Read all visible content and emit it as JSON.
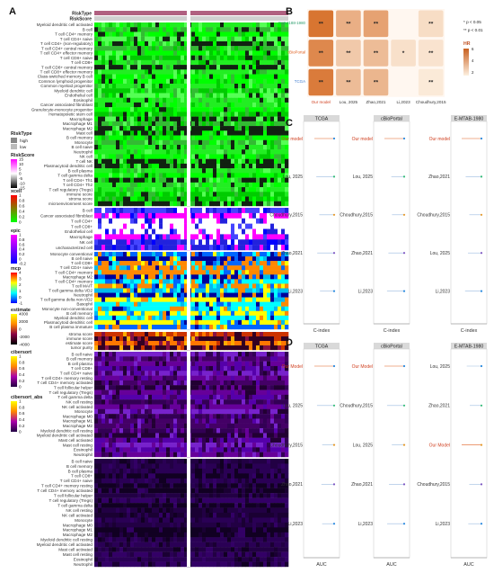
{
  "panel_letters": [
    "A",
    "B",
    "C",
    "D"
  ],
  "panel_a": {
    "top_bars": [
      "RiskType",
      "RiskScore"
    ],
    "legends": [
      {
        "title": "RiskType",
        "items": [
          {
            "label": "high",
            "color": "#888888"
          },
          {
            "label": "low",
            "color": "#bbbbbb"
          }
        ]
      },
      {
        "title": "RiskScore",
        "ticks": [
          "15",
          "10",
          "5",
          "0",
          "-5",
          "-10",
          "-15"
        ],
        "colors": [
          "#ff00ff",
          "#ffffff",
          "#000000"
        ]
      },
      {
        "title": "xcell",
        "ticks": [
          "1",
          "0.8",
          "0.6",
          "0.4",
          "0.2",
          "0"
        ],
        "colors": [
          "#ff0000",
          "#00ff00"
        ]
      },
      {
        "title": "epic",
        "ticks": [
          "1",
          "0.8",
          "0.6",
          "0.4",
          "0.2",
          "0",
          "-0.2"
        ],
        "colors": [
          "#ff00ff",
          "#0000ff"
        ]
      },
      {
        "title": "mcp",
        "ticks": [
          "4",
          "3",
          "2",
          "1",
          "0",
          "-1"
        ],
        "colors": [
          "#ff0000",
          "#ffff00",
          "#00ffff",
          "#0000ff"
        ]
      },
      {
        "title": "estimate",
        "ticks": [
          "4000",
          "2000",
          "0",
          "-2000",
          "-4000"
        ],
        "colors": [
          "#ffff00",
          "#ff8800",
          "#880044",
          "#000000"
        ]
      },
      {
        "title": "cibersort",
        "ticks": [
          "1",
          "0.8",
          "0.6",
          "0.4",
          "0.2",
          "0"
        ],
        "colors": [
          "#ffff00",
          "#ff8800",
          "#aa00aa",
          "#220044"
        ]
      },
      {
        "title": "cibersort_abs",
        "ticks": [
          "1",
          "0.8",
          "0.6",
          "0.4",
          "0.2",
          "0"
        ],
        "colors": [
          "#ffff00",
          "#ff8800",
          "#aa00aa",
          "#220044"
        ]
      }
    ],
    "blocks": [
      {
        "name": "xcell",
        "colors": [
          "#22ee22",
          "#00ff00",
          "#33bb33",
          "#55ff55",
          "#00cc00",
          "#112211"
        ],
        "rows": [
          "Myeloid dendritic cell activated",
          "B cell",
          "T cell CD4+ memory",
          "T cell CD4+ naive",
          "T cell CD4+ (non-regulatory)",
          "T cell CD4+ central memory",
          "T cell CD4+ effector memory",
          "T cell CD8+ naive",
          "T cell CD8+",
          "T cell CD8+ central memory",
          "T cell CD8+ effector memory",
          "Class-switched memory B cell",
          "Common lymphoid progenitor",
          "Common myeloid progenitor",
          "Myeloid dendritic cell",
          "Endothelial cell",
          "Eosinophil",
          "Cancer associated fibroblast",
          "Granulocyte-monocyte progenitor",
          "Hematopoietic stem cell",
          "Macrophage",
          "Macrophage M1",
          "Macrophage M2",
          "Mast cell",
          "B cell memory",
          "Monocyte",
          "B cell naive",
          "Neutrophil",
          "NK cell",
          "T cell NK",
          "Plasmacytoid dendritic cell",
          "B cell plasma",
          "T cell gamma delta",
          "T cell CD4+ Th1",
          "T cell CD4+ Th2",
          "T cell regulatory (Tregs)",
          "immune score",
          "stroma score",
          "microenvironment score"
        ]
      },
      {
        "name": "epic",
        "colors": [
          "#0000ff",
          "#2222dd",
          "#4444ff",
          "#ff00ff",
          "#ffffff"
        ],
        "rows": [
          "B cell",
          "Cancer associated fibroblast",
          "T cell CD4+",
          "T cell CD8+",
          "Endothelial cell",
          "Macrophage",
          "NK cell",
          "uncharacterized cell"
        ]
      },
      {
        "name": "mcp",
        "colors": [
          "#00bbee",
          "#0066ff",
          "#ffff00",
          "#00ffff",
          "#ff8800",
          "#000099"
        ],
        "rows": [
          "Monocyte conventional",
          "B cell naive",
          "T cell CD8+",
          "T cell CD4+ naive",
          "T cell CD4+ memory",
          "Macrophage M2",
          "T cell CD4+ memory",
          "T cell MAIT",
          "T cell gamma delta VD2",
          "Neutrophil",
          "T cell gamma delta non-VD2",
          "Basophil",
          "Monocyte non-conventional",
          "B cell memory",
          "Myeloid dendritic cell",
          "Plasmacytoid dendritic cell",
          "B cell plasma immature"
        ]
      },
      {
        "name": "estimate",
        "colors": [
          "#ff7700",
          "#cc3300",
          "#ffaa00",
          "#881144",
          "#330022"
        ],
        "rows": [
          "stroma score",
          "immune score",
          "estimate score",
          "tumor purity"
        ]
      },
      {
        "name": "cibersort",
        "colors": [
          "#330055",
          "#440066",
          "#660099",
          "#220033",
          "#5500aa",
          "#7722cc"
        ],
        "rows": [
          "B cell naive",
          "B cell memory",
          "B cell plasma",
          "T cell CD8+",
          "T cell CD4+ naive",
          "T cell CD4+ memory resting",
          "T cell CD4+ memory activated",
          "T cell follicular helper",
          "T cell regulatory (Tregs)",
          "T cell gamma delta",
          "NK cell resting",
          "NK cell activated",
          "Monocyte",
          "Macrophage M0",
          "Macrophage M1",
          "Macrophage M2",
          "Myeloid dendritic cell resting",
          "Myeloid dendritic cell activated",
          "Mast cell activated",
          "Mast cell resting",
          "Eosinophil",
          "Neutrophil"
        ]
      },
      {
        "name": "cibersort_abs",
        "colors": [
          "#110022",
          "#1a0033",
          "#220044",
          "#2a0055",
          "#330066"
        ],
        "rows": [
          "B cell naive",
          "B cell memory",
          "B cell plasma",
          "T cell CD8+",
          "T cell CD4+ naive",
          "T cell CD4+ memory resting",
          "T cell CD4+ memory activated",
          "T cell follicular helper",
          "T cell regulatory (Tregs)",
          "T cell gamma delta",
          "NK cell resting",
          "NK cell activated",
          "Monocyte",
          "Macrophage M0",
          "Macrophage M1",
          "Macrophage M2",
          "Myeloid dendritic cell resting",
          "Myeloid dendritic cell activated",
          "Mast cell activated",
          "Mast cell resting",
          "Eosinophil",
          "Neutrophil"
        ]
      }
    ]
  },
  "chart_data": [
    {
      "type": "heatmap",
      "panel": "B",
      "rows": [
        "GSE4188-1980",
        "cBioPortal",
        "TCGA"
      ],
      "columns": [
        "Our model",
        "Lou, 2025",
        "Zhao,2021",
        "Li,2023",
        "Choudhury,2015"
      ],
      "values": [
        [
          4.8,
          3.0,
          3.4,
          null,
          1.6
        ],
        [
          4.2,
          2.2,
          2.6,
          1.5,
          1.4
        ],
        [
          4.6,
          2.6,
          2.8,
          null,
          1.2
        ]
      ],
      "annotations": [
        [
          "**",
          "**",
          "**",
          "",
          "**"
        ],
        [
          "**",
          "**",
          "**",
          "*",
          "**"
        ],
        [
          "**",
          "**",
          "**",
          "",
          "**"
        ]
      ],
      "legend_title": "HR",
      "legend_ticks": [
        "6",
        "4",
        "2"
      ],
      "notes": [
        "* p < 0.05",
        "** p < 0.01"
      ]
    },
    {
      "type": "scatter",
      "panel": "C",
      "facets": [
        "TCGA",
        "cBioPortal",
        "E-MTAB-1980"
      ],
      "xlabel": "C-index",
      "row_labels": [
        [
          "Our model",
          "Lou, 2025",
          "Choudhury,2015",
          "Zhao,2021",
          "Li,2023"
        ],
        [
          "Our model",
          "Lou, 2025",
          "Choudhury,2015",
          "Zhao,2021",
          "Li,2023"
        ],
        [
          "Our model",
          "Zhao,2021",
          "Choudhury,2015",
          "Lou, 2025",
          "Li,2023"
        ]
      ]
    },
    {
      "type": "scatter",
      "panel": "D",
      "facets": [
        "TCGA",
        "cBioPortal",
        "E-MTAB-1980"
      ],
      "xlabel": "AUC",
      "row_labels": [
        [
          "Our Model",
          "Lou, 2025",
          "Choudhury,2015",
          "Zhao,2021",
          "Li,2023"
        ],
        [
          "Our Model",
          "Choudhury,2015",
          "Lou, 2025",
          "Zhao,2021",
          "Li,2023"
        ],
        [
          "Lou, 2025",
          "Zhao,2021",
          "Our Model",
          "Choudhury,2015",
          "Li,2023"
        ]
      ]
    }
  ]
}
